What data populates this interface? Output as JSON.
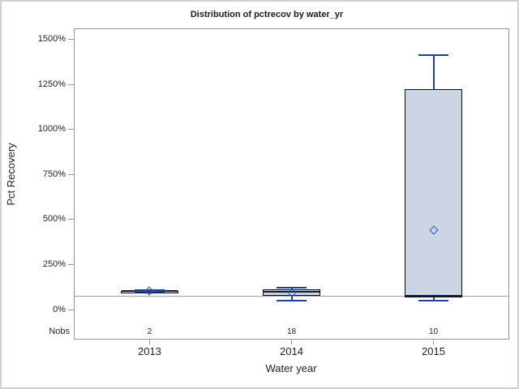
{
  "colors": {
    "background": "#ffffff",
    "box_fill": "#ccd5e3",
    "box_border": "#0d0d0d",
    "median_line": "#101b3c",
    "whisker": "#1f4099",
    "mean_marker": "#2753bd",
    "reference_line": "#a3a3a3",
    "axis_frame": "#8f979e",
    "text": "#1f1f1f"
  },
  "chart_data": {
    "type": "box",
    "title": "Distribution of pctrecov by water_yr",
    "xlabel": "Water year",
    "ylabel": "Pct Recovery",
    "categories": [
      "2013",
      "2014",
      "2015"
    ],
    "nobs_label": "Nobs",
    "nobs": [
      "2",
      "18",
      "10"
    ],
    "ylim": [
      0,
      1500
    ],
    "ytick_values": [
      0,
      250,
      500,
      750,
      1000,
      1250,
      1500
    ],
    "ytick_labels": [
      "0%",
      "250%",
      "500%",
      "750%",
      "1000%",
      "1250%",
      "1500%"
    ],
    "reference_line_value": 75,
    "grid": "off",
    "legend": "none",
    "series": [
      {
        "category": "2013",
        "n": 2,
        "min": 95,
        "q1": 98,
        "median": 100,
        "q3": 102,
        "max": 105,
        "mean": 100
      },
      {
        "category": "2014",
        "n": 18,
        "min": 45,
        "q1": 75,
        "median": 95,
        "q3": 110,
        "max": 118,
        "mean": 92
      },
      {
        "category": "2015",
        "n": 10,
        "min": 45,
        "q1": 67,
        "median": 75,
        "q3": 1220,
        "max": 1410,
        "mean": 440
      }
    ]
  }
}
